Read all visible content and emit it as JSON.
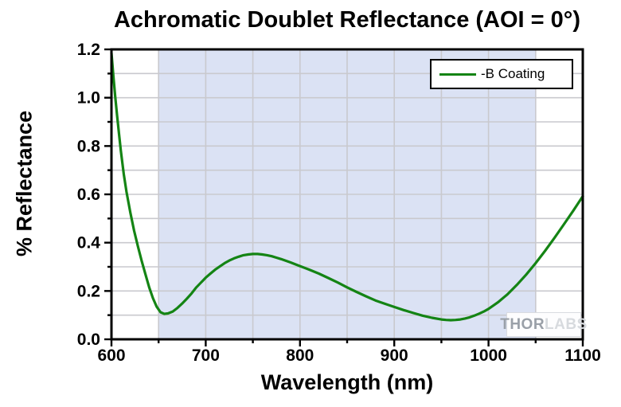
{
  "page": {
    "background": "#ffffff"
  },
  "watermark": {
    "thor": "THOR",
    "labs": "LABS"
  },
  "chart_data": {
    "type": "line",
    "title": "Achromatic Doublet Reflectance (AOI = 0°)",
    "xlabel": "Wavelength (nm)",
    "ylabel": "% Reflectance",
    "xlim": [
      600,
      1100
    ],
    "ylim": [
      0,
      1.2
    ],
    "x_tick_labels": [
      "600",
      "700",
      "800",
      "900",
      "1000",
      "1100"
    ],
    "y_tick_labels": [
      "0.0",
      "0.2",
      "0.4",
      "0.6",
      "0.8",
      "1.0",
      "1.2"
    ],
    "x_minor_step": 50,
    "y_minor_step": 0.1,
    "grid": true,
    "legend_position": "top-right",
    "shaded_band": {
      "x_from": 650,
      "x_to": 1050
    },
    "legend": [
      {
        "name": "-B Coating",
        "color": "#148414"
      }
    ],
    "series": [
      {
        "name": "-B Coating",
        "points": [
          [
            600,
            1.185
          ],
          [
            602,
            1.09
          ],
          [
            604,
            1.005
          ],
          [
            606,
            0.925
          ],
          [
            608,
            0.85
          ],
          [
            610,
            0.78
          ],
          [
            613,
            0.685
          ],
          [
            616,
            0.61
          ],
          [
            620,
            0.525
          ],
          [
            624,
            0.45
          ],
          [
            628,
            0.385
          ],
          [
            632,
            0.325
          ],
          [
            636,
            0.27
          ],
          [
            640,
            0.215
          ],
          [
            644,
            0.17
          ],
          [
            648,
            0.135
          ],
          [
            652,
            0.112
          ],
          [
            656,
            0.105
          ],
          [
            660,
            0.107
          ],
          [
            665,
            0.115
          ],
          [
            670,
            0.13
          ],
          [
            675,
            0.148
          ],
          [
            680,
            0.168
          ],
          [
            685,
            0.19
          ],
          [
            690,
            0.215
          ],
          [
            695,
            0.235
          ],
          [
            700,
            0.255
          ],
          [
            705,
            0.272
          ],
          [
            710,
            0.288
          ],
          [
            715,
            0.302
          ],
          [
            720,
            0.315
          ],
          [
            725,
            0.326
          ],
          [
            730,
            0.335
          ],
          [
            735,
            0.342
          ],
          [
            740,
            0.348
          ],
          [
            745,
            0.351
          ],
          [
            750,
            0.353
          ],
          [
            755,
            0.353
          ],
          [
            760,
            0.351
          ],
          [
            765,
            0.348
          ],
          [
            770,
            0.344
          ],
          [
            775,
            0.338
          ],
          [
            780,
            0.332
          ],
          [
            790,
            0.318
          ],
          [
            800,
            0.303
          ],
          [
            810,
            0.288
          ],
          [
            820,
            0.272
          ],
          [
            830,
            0.254
          ],
          [
            840,
            0.235
          ],
          [
            850,
            0.215
          ],
          [
            860,
            0.196
          ],
          [
            870,
            0.178
          ],
          [
            880,
            0.161
          ],
          [
            890,
            0.147
          ],
          [
            900,
            0.134
          ],
          [
            910,
            0.121
          ],
          [
            920,
            0.109
          ],
          [
            930,
            0.098
          ],
          [
            940,
            0.089
          ],
          [
            950,
            0.082
          ],
          [
            955,
            0.08
          ],
          [
            960,
            0.079
          ],
          [
            965,
            0.08
          ],
          [
            970,
            0.082
          ],
          [
            975,
            0.086
          ],
          [
            980,
            0.091
          ],
          [
            985,
            0.098
          ],
          [
            990,
            0.106
          ],
          [
            995,
            0.115
          ],
          [
            1000,
            0.126
          ],
          [
            1010,
            0.153
          ],
          [
            1020,
            0.186
          ],
          [
            1030,
            0.225
          ],
          [
            1040,
            0.268
          ],
          [
            1050,
            0.315
          ],
          [
            1060,
            0.366
          ],
          [
            1070,
            0.42
          ],
          [
            1080,
            0.476
          ],
          [
            1090,
            0.533
          ],
          [
            1100,
            0.592
          ]
        ]
      }
    ],
    "colors": {
      "curve": "#148414",
      "band": "#dbe2f4",
      "grid": "#c9c9ce",
      "axis": "#000000",
      "text": "#000000"
    }
  }
}
